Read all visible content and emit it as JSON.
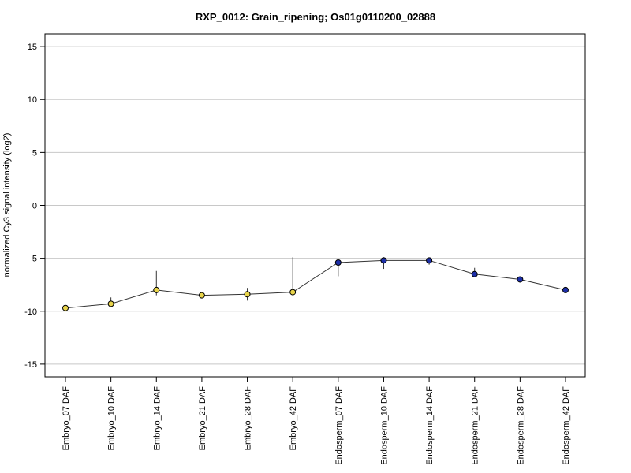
{
  "chart_data": {
    "type": "line",
    "title": "RXP_0012: Grain_ripening; Os01g0110200_02888",
    "xlabel": "",
    "ylabel": "normalized Cy3 signal intensity (log2)",
    "ylim": [
      -16.2,
      16.2
    ],
    "yticks": [
      15,
      10,
      5,
      0,
      -5,
      -10,
      -15
    ],
    "yticklabels": [
      "15",
      "10",
      "5",
      "0",
      "-5",
      "-10",
      "-15"
    ],
    "grid": true,
    "categories": [
      "Embryo_07 DAF",
      "Embryo_10 DAF",
      "Embryo_14 DAF",
      "Embryo_21 DAF",
      "Embryo_28 DAF",
      "Embryo_42 DAF",
      "Endosperm_07 DAF",
      "Endosperm_10 DAF",
      "Endosperm_14 DAF",
      "Endosperm_21 DAF",
      "Endosperm_28 DAF",
      "Endosperm_42 DAF"
    ],
    "series": [
      {
        "values": [
          -9.7,
          -9.3,
          -8.0,
          -8.5,
          -8.4,
          -8.2,
          -5.4,
          -5.2,
          -5.2,
          -6.5,
          -7.0,
          -8.0
        ],
        "err_low": [
          -9.7,
          -9.5,
          -8.5,
          -8.6,
          -9.0,
          -8.3,
          -6.7,
          -6.0,
          -5.6,
          -6.7,
          -7.2,
          -8.1
        ],
        "err_high": [
          -9.6,
          -8.7,
          -6.2,
          -8.4,
          -7.8,
          -4.9,
          -5.2,
          -4.9,
          -5.0,
          -5.9,
          -6.8,
          -7.8
        ],
        "colors": [
          "#e8d44a",
          "#e8d44a",
          "#e8d44a",
          "#e8d44a",
          "#e8d44a",
          "#e8d44a",
          "#1d2fa8",
          "#1d2fa8",
          "#1d2fa8",
          "#1d2fa8",
          "#1d2fa8",
          "#1d2fa8"
        ]
      }
    ]
  }
}
